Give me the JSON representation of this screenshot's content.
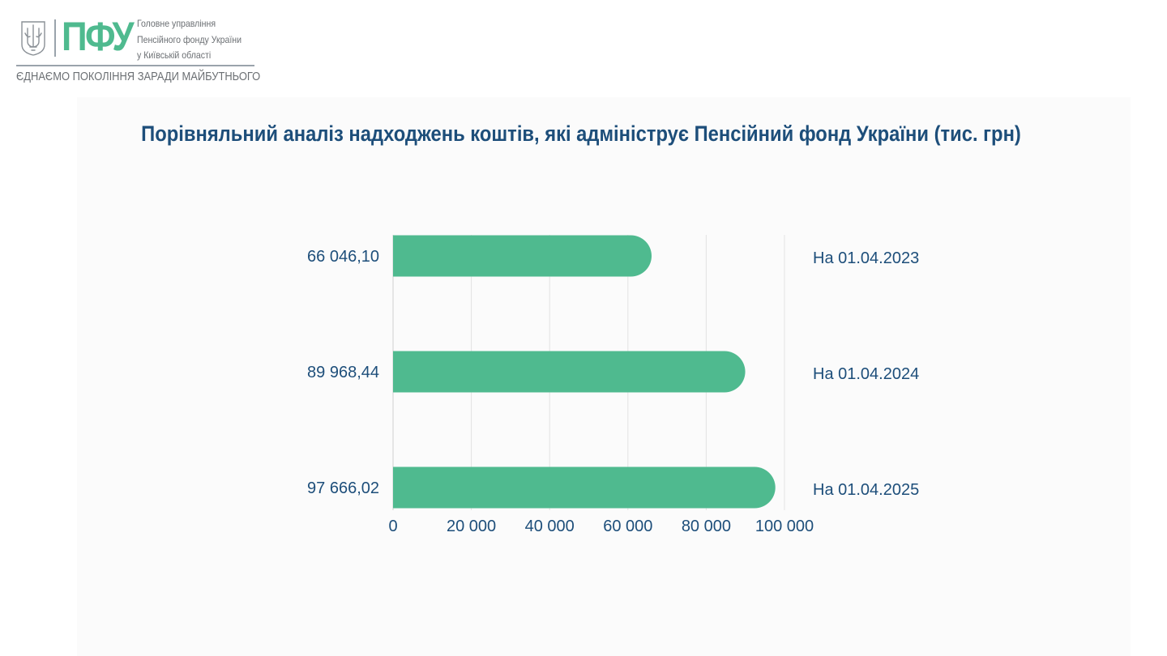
{
  "header": {
    "logo_mark": "ПФУ",
    "org_lines": [
      "Головне управління",
      "Пенсійного фонду України",
      "у Київській області"
    ],
    "slogan": "ЄДНАЄМО ПОКОЛІННЯ ЗАРАДИ МАЙБУТНЬОГО"
  },
  "colors": {
    "bar": "#4fba8f",
    "text": "#1d4e7a",
    "grid": "#e3e3e3"
  },
  "chart_data": {
    "type": "bar",
    "orientation": "horizontal",
    "title": "Порівняльний аналіз надходжень коштів, які адмініструє Пенсійний фонд України (тис. грн)",
    "categories": [
      "На 01.04.2023",
      "На 01.04.2024",
      "На 01.04.2025"
    ],
    "values": [
      66046.1,
      89968.44,
      97666.02
    ],
    "value_labels": [
      "66 046,10",
      "89 968,44",
      "97 666,02"
    ],
    "xlim": [
      0,
      100000
    ],
    "x_ticks": [
      0,
      20000,
      40000,
      60000,
      80000,
      100000
    ],
    "x_tick_labels": [
      "0",
      "20 000",
      "40 000",
      "60 000",
      "80 000",
      "100 000"
    ],
    "grid": true,
    "value_label_position": "left",
    "category_label_position": "right"
  }
}
